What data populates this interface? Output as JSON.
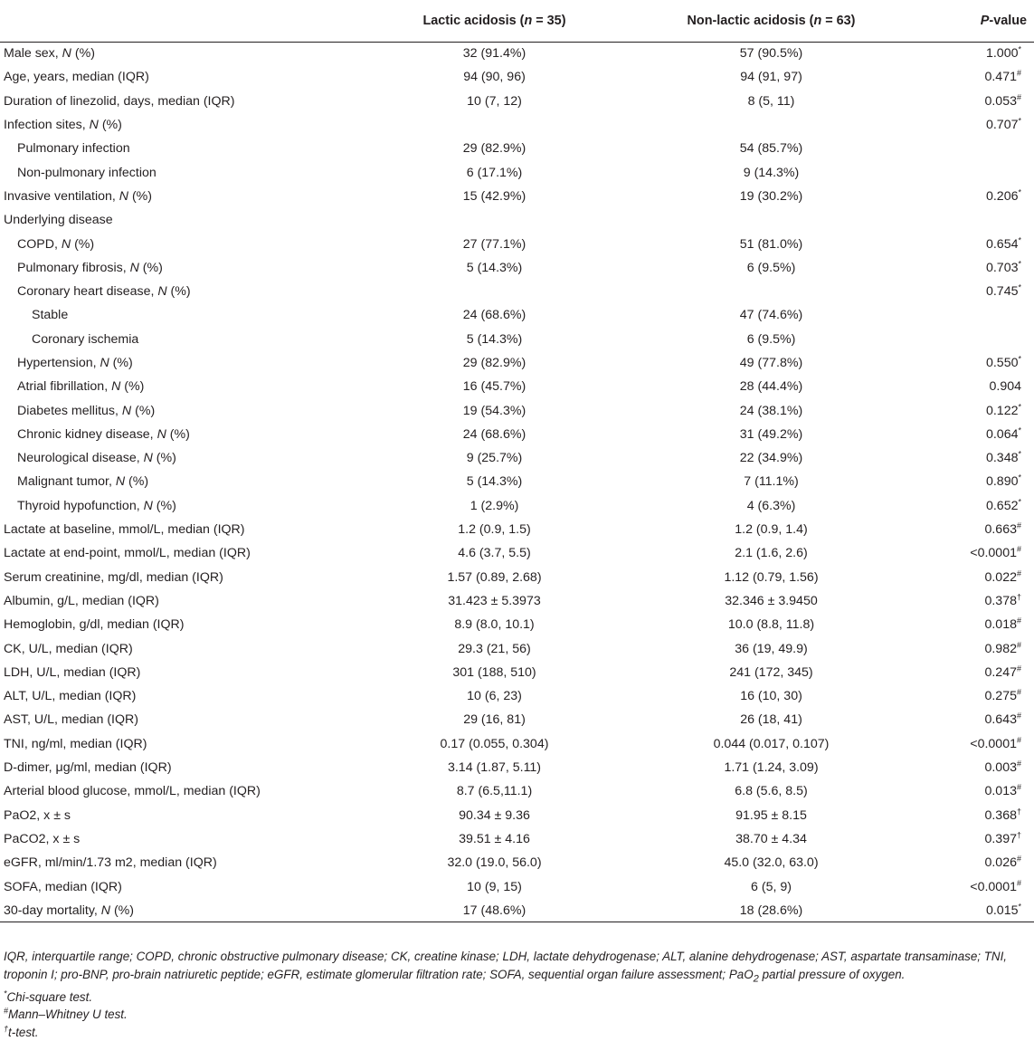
{
  "header": {
    "col_label": "",
    "lactic": "Lactic acidosis (",
    "lactic_n": "n",
    "lactic_eq": " = 35)",
    "nonlactic": "Non-lactic acidosis (",
    "nonlactic_n": "n",
    "nonlactic_eq": " = 63)",
    "pvalue_p": "P",
    "pvalue_rest": "-value"
  },
  "rows": [
    {
      "label": "Male sex, ",
      "it": "N",
      "rest": " (%)",
      "indent": 0,
      "lactic": "32 (91.4%)",
      "nonlactic": "57 (90.5%)",
      "p": "1.000",
      "mark": "*"
    },
    {
      "label": "Age, years, median (IQR)",
      "it": "",
      "rest": "",
      "indent": 0,
      "lactic": "94 (90, 96)",
      "nonlactic": "94 (91, 97)",
      "p": "0.471",
      "mark": "#"
    },
    {
      "label": "Duration of linezolid, days, median (IQR)",
      "it": "",
      "rest": "",
      "indent": 0,
      "lactic": "10 (7, 12)",
      "nonlactic": "8 (5, 11)",
      "p": "0.053",
      "mark": "#"
    },
    {
      "label": "Infection sites, ",
      "it": "N",
      "rest": " (%)",
      "indent": 0,
      "lactic": "",
      "nonlactic": "",
      "p": "0.707",
      "mark": "*"
    },
    {
      "label": "Pulmonary infection",
      "it": "",
      "rest": "",
      "indent": 1,
      "lactic": "29 (82.9%)",
      "nonlactic": "54 (85.7%)",
      "p": "",
      "mark": ""
    },
    {
      "label": "Non-pulmonary infection",
      "it": "",
      "rest": "",
      "indent": 1,
      "lactic": "6 (17.1%)",
      "nonlactic": "9 (14.3%)",
      "p": "",
      "mark": ""
    },
    {
      "label": "Invasive ventilation, ",
      "it": "N",
      "rest": " (%)",
      "indent": 0,
      "lactic": "15 (42.9%)",
      "nonlactic": "19 (30.2%)",
      "p": "0.206",
      "mark": "*"
    },
    {
      "label": "Underlying disease",
      "it": "",
      "rest": "",
      "indent": 0,
      "lactic": "",
      "nonlactic": "",
      "p": "",
      "mark": ""
    },
    {
      "label": "COPD, ",
      "it": "N",
      "rest": " (%)",
      "indent": 1,
      "lactic": "27 (77.1%)",
      "nonlactic": "51 (81.0%)",
      "p": "0.654",
      "mark": "*"
    },
    {
      "label": "Pulmonary fibrosis, ",
      "it": "N",
      "rest": " (%)",
      "indent": 1,
      "lactic": "5 (14.3%)",
      "nonlactic": "6 (9.5%)",
      "p": "0.703",
      "mark": "*"
    },
    {
      "label": "Coronary heart disease, ",
      "it": "N",
      "rest": " (%)",
      "indent": 1,
      "lactic": "",
      "nonlactic": "",
      "p": "0.745",
      "mark": "*"
    },
    {
      "label": "Stable",
      "it": "",
      "rest": "",
      "indent": 2,
      "lactic": "24 (68.6%)",
      "nonlactic": "47 (74.6%)",
      "p": "",
      "mark": ""
    },
    {
      "label": "Coronary ischemia",
      "it": "",
      "rest": "",
      "indent": 2,
      "lactic": "5 (14.3%)",
      "nonlactic": "6 (9.5%)",
      "p": "",
      "mark": ""
    },
    {
      "label": "Hypertension, ",
      "it": "N",
      "rest": " (%)",
      "indent": 1,
      "lactic": "29 (82.9%)",
      "nonlactic": "49 (77.8%)",
      "p": "0.550",
      "mark": "*"
    },
    {
      "label": "Atrial fibrillation, ",
      "it": "N",
      "rest": " (%)",
      "indent": 1,
      "lactic": "16 (45.7%)",
      "nonlactic": "28 (44.4%)",
      "p": "0.904",
      "mark": ""
    },
    {
      "label": "Diabetes mellitus, ",
      "it": "N",
      "rest": " (%)",
      "indent": 1,
      "lactic": "19 (54.3%)",
      "nonlactic": "24 (38.1%)",
      "p": "0.122",
      "mark": "*"
    },
    {
      "label": "Chronic kidney disease, ",
      "it": "N",
      "rest": " (%)",
      "indent": 1,
      "lactic": "24 (68.6%)",
      "nonlactic": "31 (49.2%)",
      "p": "0.064",
      "mark": "*"
    },
    {
      "label": "Neurological disease, ",
      "it": "N",
      "rest": " (%)",
      "indent": 1,
      "lactic": "9 (25.7%)",
      "nonlactic": "22 (34.9%)",
      "p": "0.348",
      "mark": "*"
    },
    {
      "label": "Malignant tumor, ",
      "it": "N",
      "rest": " (%)",
      "indent": 1,
      "lactic": "5 (14.3%)",
      "nonlactic": "7 (11.1%)",
      "p": "0.890",
      "mark": "*"
    },
    {
      "label": "Thyroid hypofunction, ",
      "it": "N",
      "rest": " (%)",
      "indent": 1,
      "lactic": "1 (2.9%)",
      "nonlactic": "4 (6.3%)",
      "p": "0.652",
      "mark": "*"
    },
    {
      "label": "Lactate at baseline, mmol/L, median (IQR)",
      "it": "",
      "rest": "",
      "indent": 0,
      "lactic": "1.2 (0.9, 1.5)",
      "nonlactic": "1.2 (0.9, 1.4)",
      "p": "0.663",
      "mark": "#"
    },
    {
      "label": "Lactate at end-point, mmol/L, median (IQR)",
      "it": "",
      "rest": "",
      "indent": 0,
      "lactic": "4.6 (3.7, 5.5)",
      "nonlactic": "2.1 (1.6, 2.6)",
      "p": "<0.0001",
      "mark": "#"
    },
    {
      "label": "Serum creatinine, mg/dl, median (IQR)",
      "it": "",
      "rest": "",
      "indent": 0,
      "lactic": "1.57 (0.89, 2.68)",
      "nonlactic": "1.12 (0.79, 1.56)",
      "p": "0.022",
      "mark": "#"
    },
    {
      "label": "Albumin, g/L, median (IQR)",
      "it": "",
      "rest": "",
      "indent": 0,
      "lactic": "31.423 ± 5.3973",
      "nonlactic": "32.346 ± 3.9450",
      "p": "0.378",
      "mark": "†"
    },
    {
      "label": "Hemoglobin, g/dl, median (IQR)",
      "it": "",
      "rest": "",
      "indent": 0,
      "lactic": "8.9 (8.0, 10.1)",
      "nonlactic": "10.0 (8.8, 11.8)",
      "p": "0.018",
      "mark": "#"
    },
    {
      "label": "CK, U/L, median (IQR)",
      "it": "",
      "rest": "",
      "indent": 0,
      "lactic": "29.3 (21, 56)",
      "nonlactic": "36 (19, 49.9)",
      "p": "0.982",
      "mark": "#"
    },
    {
      "label": "LDH, U/L, median (IQR)",
      "it": "",
      "rest": "",
      "indent": 0,
      "lactic": "301 (188, 510)",
      "nonlactic": "241 (172, 345)",
      "p": "0.247",
      "mark": "#"
    },
    {
      "label": "ALT, U/L, median (IQR)",
      "it": "",
      "rest": "",
      "indent": 0,
      "lactic": "10 (6, 23)",
      "nonlactic": "16 (10, 30)",
      "p": "0.275",
      "mark": "#"
    },
    {
      "label": "AST, U/L, median (IQR)",
      "it": "",
      "rest": "",
      "indent": 0,
      "lactic": "29 (16, 81)",
      "nonlactic": "26 (18, 41)",
      "p": "0.643",
      "mark": "#"
    },
    {
      "label": "TNI, ng/ml, median (IQR)",
      "it": "",
      "rest": "",
      "indent": 0,
      "lactic": "0.17 (0.055, 0.304)",
      "nonlactic": "0.044 (0.017, 0.107)",
      "p": "<0.0001",
      "mark": "#"
    },
    {
      "label": "D-dimer, μg/ml, median (IQR)",
      "it": "",
      "rest": "",
      "indent": 0,
      "lactic": "3.14 (1.87, 5.11)",
      "nonlactic": "1.71 (1.24, 3.09)",
      "p": "0.003",
      "mark": "#"
    },
    {
      "label": "Arterial blood glucose, mmol/L, median (IQR)",
      "it": "",
      "rest": "",
      "indent": 0,
      "lactic": "8.7 (6.5,11.1)",
      "nonlactic": "6.8 (5.6, 8.5)",
      "p": "0.013",
      "mark": "#"
    },
    {
      "label": "PaO2, x ± s",
      "it": "",
      "rest": "",
      "indent": 0,
      "lactic": "90.34 ± 9.36",
      "nonlactic": "91.95 ± 8.15",
      "p": "0.368",
      "mark": "†"
    },
    {
      "label": "PaCO2, x ± s",
      "it": "",
      "rest": "",
      "indent": 0,
      "lactic": "39.51 ± 4.16",
      "nonlactic": "38.70 ± 4.34",
      "p": "0.397",
      "mark": "†"
    },
    {
      "label": "eGFR, ml/min/1.73 m2, median (IQR)",
      "it": "",
      "rest": "",
      "indent": 0,
      "lactic": "32.0 (19.0, 56.0)",
      "nonlactic": "45.0 (32.0, 63.0)",
      "p": "0.026",
      "mark": "#"
    },
    {
      "label": "SOFA, median (IQR)",
      "it": "",
      "rest": "",
      "indent": 0,
      "lactic": "10 (9, 15)",
      "nonlactic": "6 (5, 9)",
      "p": "<0.0001",
      "mark": "#"
    },
    {
      "label": "30-day mortality, ",
      "it": "N",
      "rest": " (%)",
      "indent": 0,
      "lactic": "17 (48.6%)",
      "nonlactic": "18 (28.6%)",
      "p": "0.015",
      "mark": "*"
    }
  ],
  "notes": {
    "abbrev_a": "IQR, interquartile range; COPD, chronic obstructive pulmonary disease; CK, creatine kinase; LDH, lactate dehydrogenase; ALT, alanine dehydrogenase; AST, aspartate transaminase; TNI, troponin I; pro-BNP, pro-brain natriuretic peptide; eGFR, estimate glomerular filtration rate; SOFA, sequential organ failure assessment; PaO",
    "abbrev_sub": "2",
    "abbrev_b": " partial pressure of oxygen.",
    "chi_mark": "*",
    "chi_text": "Chi-square test.",
    "mw_mark": "#",
    "mw_text": "Mann–Whitney U test.",
    "t_mark": "†",
    "t_text": "t-test."
  }
}
